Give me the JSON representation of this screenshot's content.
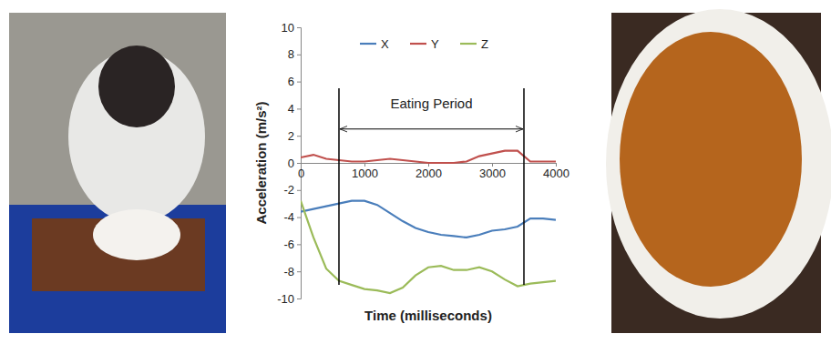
{
  "chart_data": {
    "type": "line",
    "x_label": "Time (milliseconds)",
    "y_label": "Acceleration (m/s²)",
    "x": [
      0,
      200,
      400,
      600,
      800,
      1000,
      1200,
      1400,
      1600,
      1800,
      2000,
      2200,
      2400,
      2600,
      2800,
      3000,
      3200,
      3400,
      3600,
      3800,
      4000
    ],
    "series": [
      {
        "name": "X",
        "color": "#4a7ebb",
        "values": [
          -3.6,
          -3.4,
          -3.2,
          -3.0,
          -2.8,
          -2.8,
          -3.1,
          -3.7,
          -4.3,
          -4.8,
          -5.1,
          -5.3,
          -5.4,
          -5.5,
          -5.3,
          -5.0,
          -4.9,
          -4.7,
          -4.1,
          -4.1,
          -4.2
        ]
      },
      {
        "name": "Y",
        "color": "#c0504d",
        "values": [
          0.4,
          0.6,
          0.3,
          0.2,
          0.1,
          0.1,
          0.2,
          0.3,
          0.2,
          0.1,
          0.0,
          0.0,
          0.0,
          0.1,
          0.5,
          0.7,
          0.9,
          0.9,
          0.1,
          0.1,
          0.1
        ]
      },
      {
        "name": "Z",
        "color": "#9bbb59",
        "values": [
          -2.8,
          -5.5,
          -7.8,
          -8.7,
          -9.0,
          -9.3,
          -9.4,
          -9.6,
          -9.2,
          -8.3,
          -7.7,
          -7.6,
          -7.9,
          -7.9,
          -7.7,
          -8.0,
          -8.6,
          -9.1,
          -8.9,
          -8.8,
          -8.7
        ]
      }
    ],
    "xlim": [
      0,
      4000
    ],
    "xticks": [
      0,
      1000,
      2000,
      3000,
      4000
    ],
    "ylim": [
      -10,
      10
    ],
    "yticks": [
      -10,
      -8,
      -6,
      -4,
      -2,
      0,
      2,
      4,
      6,
      8,
      10
    ],
    "grid": false,
    "legend": "top",
    "annotations": [
      {
        "text": "Eating Period",
        "x": [
          600,
          3500
        ],
        "y": [
          5.5,
          -9
        ],
        "arrow_y": 2.5,
        "text_y": 4
      }
    ]
  }
}
